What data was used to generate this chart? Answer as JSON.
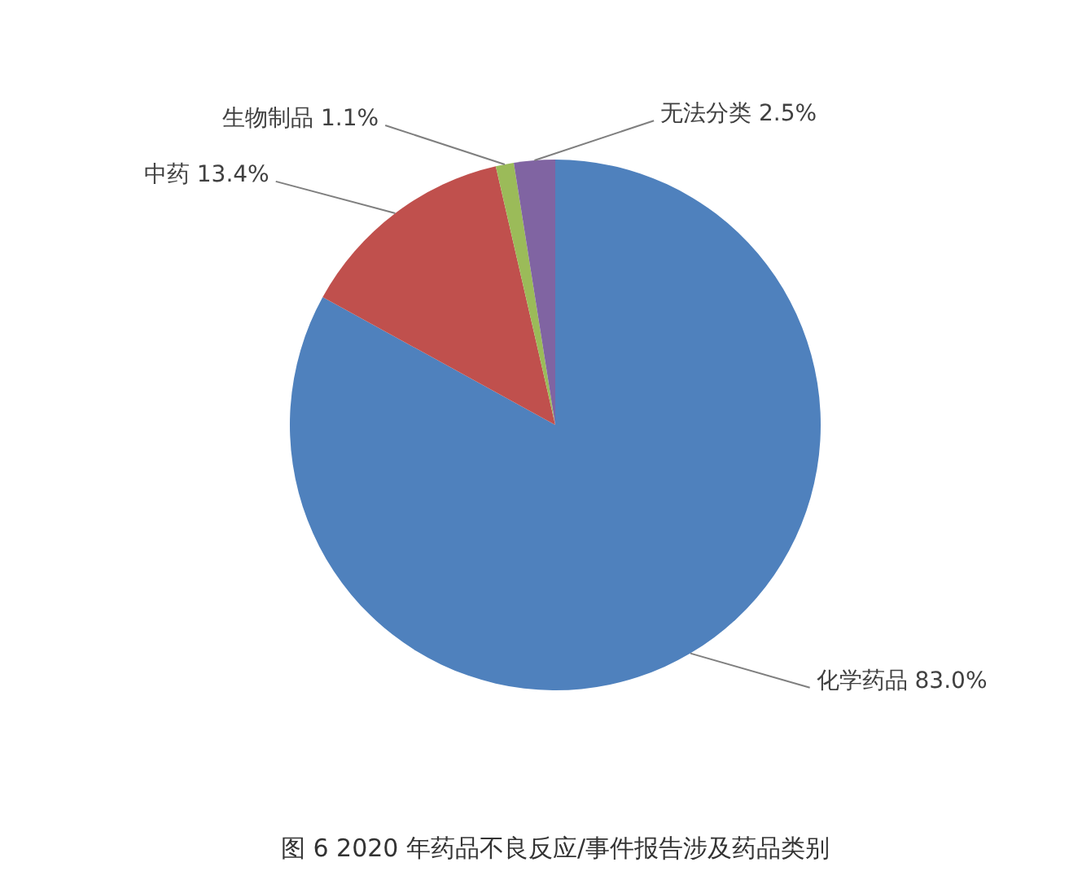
{
  "chart_data": {
    "type": "pie",
    "title": "图 6 2020 年药品不良反应/事件报告涉及药品类别",
    "categories": [
      "化学药品",
      "中药",
      "生物制品",
      "无法分类"
    ],
    "values": [
      83.0,
      13.4,
      1.1,
      2.5
    ],
    "colors": [
      "#4f81bd",
      "#c0504d",
      "#9bbb59",
      "#8064a2"
    ],
    "value_labels": [
      "83.0%",
      "13.4%",
      "1.1%",
      "2.5%"
    ]
  }
}
